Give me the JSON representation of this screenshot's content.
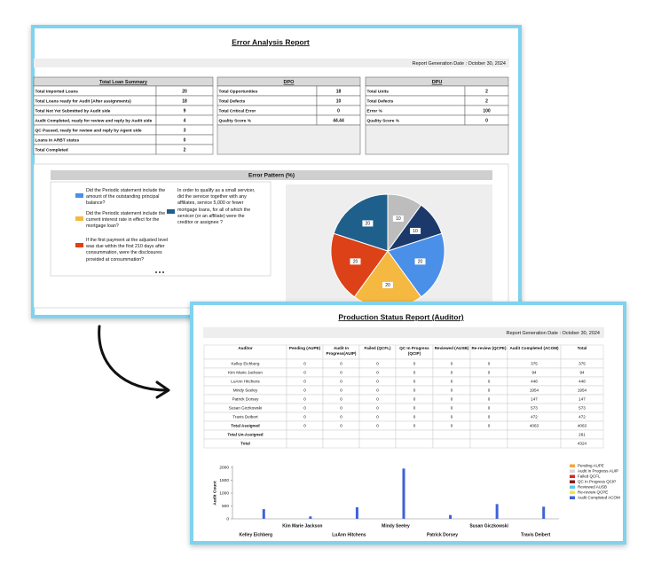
{
  "error_report": {
    "title": "Error Analysis Report",
    "generation_date": "Report Generation Date : October 30, 2024",
    "loan_summary": {
      "header": "Total Loan Summary",
      "rows": [
        [
          "Total Imported Loans",
          20
        ],
        [
          "Total Loans ready for Audit (After assignments)",
          18
        ],
        [
          "Total Not Yet Submitted by Audit side",
          9
        ],
        [
          "Audit Completed, ready for review and reply by Audit side",
          4
        ],
        [
          "QC Passed, ready for review and reply by Agent side",
          3
        ],
        [
          "Loans in ARBT status",
          0
        ],
        [
          "Total Completed",
          2
        ]
      ]
    },
    "dpo": {
      "header": "DPO",
      "rows": [
        [
          "Total Opportunities",
          18
        ],
        [
          "Total Defects",
          10
        ],
        [
          "Total Critical Error",
          0
        ],
        [
          "Quality Score %",
          44.44
        ]
      ]
    },
    "dpu": {
      "header": "DPU",
      "rows": [
        [
          "Total Units",
          2
        ],
        [
          "Total Defects",
          2
        ],
        [
          "Error %",
          100
        ],
        [
          "Quality Score %",
          0
        ]
      ]
    }
  },
  "production_report": {
    "title": "Production Status Report (Auditor)",
    "generation_date": "Report Generation Date : October 30, 2024",
    "table": {
      "columns": [
        "Auditor",
        "Pending (AUPE)",
        "Audit In Progress(AUIP)",
        "Failed (QCFL)",
        "QC In Progress (QCIP)",
        "Reviewed (AUSB)",
        "Re-review (QCPE)",
        "Audit Completed (ACOM)",
        "Total"
      ],
      "rows": [
        [
          "Kelley Eichberg",
          0,
          0,
          0,
          0,
          0,
          0,
          375,
          375
        ],
        [
          "Kim Marie Jackson",
          0,
          0,
          0,
          0,
          0,
          0,
          94,
          94
        ],
        [
          "LuAnn Hitchens",
          0,
          0,
          0,
          0,
          0,
          0,
          448,
          448
        ],
        [
          "Mindy Seeley",
          0,
          0,
          0,
          0,
          0,
          0,
          1954,
          1954
        ],
        [
          "Patrick Dorsey",
          0,
          0,
          0,
          0,
          0,
          0,
          147,
          147
        ],
        [
          "Susan Giczkowski",
          0,
          0,
          0,
          0,
          0,
          0,
          573,
          573
        ],
        [
          "Travis Deibert",
          0,
          0,
          0,
          0,
          0,
          0,
          472,
          472
        ],
        [
          "Total Assigned",
          0,
          0,
          0,
          0,
          0,
          0,
          4063,
          4063
        ],
        [
          "Total Un-Assigned",
          null,
          null,
          null,
          null,
          null,
          null,
          null,
          261
        ],
        [
          "Total",
          null,
          null,
          null,
          null,
          null,
          null,
          null,
          4324
        ]
      ]
    }
  },
  "chart_data": [
    {
      "type": "pie",
      "title": "Error Pattern (%)",
      "categories": [
        "Did the Periodic statement include the amount of the outstanding principal balance?",
        "Did the Periodic statement include the current interest rate in effect for the mortgage loan?",
        "If the first payment at the adjusted level was due within the first 210 days after consummation, were the disclosures provided at consummation?",
        "In order to qualify as a small servicer, did the servicer together with any affiliates, service 5,000 or fewer mortgage loans, for all of which the servicer (or an affiliate) were the creditor or assignee ?",
        null,
        null
      ],
      "values": [
        20,
        20,
        20,
        20,
        10,
        10
      ],
      "colors": [
        "#4a8fe8",
        "#f5b942",
        "#dc4118",
        "#1f5f8b",
        "#bdbdbd",
        "#1b3a6b"
      ]
    },
    {
      "type": "bar",
      "ylabel": "Audit Count",
      "categories": [
        "Kelley Eichberg",
        "Kim Marie Jackson",
        "LuAnn Hitchens",
        "Mindy Seeley",
        "Patrick Dorsey",
        "Susan Giczkowski",
        "Travis Deibert"
      ],
      "series": [
        {
          "name": "Pending AUPE",
          "color": "#f4a742",
          "values": [
            0,
            0,
            0,
            0,
            0,
            0,
            0
          ]
        },
        {
          "name": "Audit In Progress AUIP",
          "color": "#d9d9d9",
          "values": [
            0,
            0,
            0,
            0,
            0,
            0,
            0
          ]
        },
        {
          "name": "Failed QCFL",
          "color": "#d62728",
          "values": [
            0,
            0,
            0,
            0,
            0,
            0,
            0
          ]
        },
        {
          "name": "QC In Progress QCIP",
          "color": "#8b1a1a",
          "values": [
            0,
            0,
            0,
            0,
            0,
            0,
            0
          ]
        },
        {
          "name": "Reviewed AUSB",
          "color": "#5bc8e8",
          "values": [
            0,
            0,
            0,
            0,
            0,
            0,
            0
          ]
        },
        {
          "name": "Re-review QCPE",
          "color": "#f2e34a",
          "values": [
            0,
            0,
            0,
            0,
            0,
            0,
            0
          ]
        },
        {
          "name": "Audit Completed ACOM",
          "color": "#3f62d6",
          "values": [
            375,
            94,
            448,
            1954,
            147,
            573,
            472
          ]
        }
      ],
      "ylim": [
        0,
        2000
      ],
      "yticks": [
        0,
        500,
        1000,
        1500,
        2000
      ],
      "grid": false
    }
  ]
}
